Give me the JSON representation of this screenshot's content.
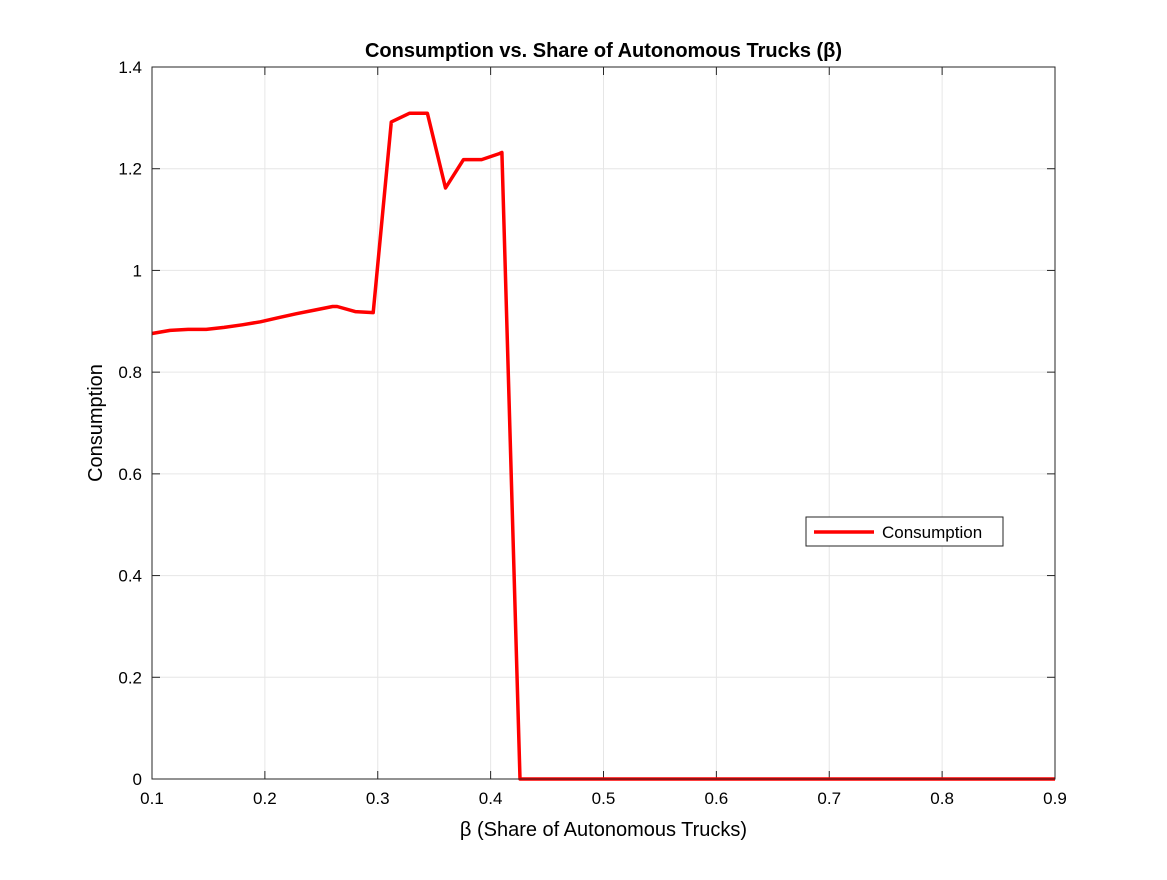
{
  "chart_data": {
    "type": "line",
    "title": "Consumption vs. Share of Autonomous Trucks (β)",
    "xlabel": "β (Share of Autonomous Trucks)",
    "ylabel": "Consumption",
    "xlim": [
      0.1,
      0.9
    ],
    "ylim": [
      0,
      1.4
    ],
    "xticks": [
      0.1,
      0.2,
      0.3,
      0.4,
      0.5,
      0.6,
      0.7,
      0.8,
      0.9
    ],
    "xtick_labels": [
      "0.1",
      "0.2",
      "0.3",
      "0.4",
      "0.5",
      "0.6",
      "0.7",
      "0.8",
      "0.9"
    ],
    "yticks": [
      0,
      0.2,
      0.4,
      0.6,
      0.8,
      1,
      1.2,
      1.4
    ],
    "ytick_labels": [
      "0",
      "0.2",
      "0.4",
      "0.6",
      "0.8",
      "1",
      "1.2",
      "1.4"
    ],
    "grid": true,
    "legend_position": "right",
    "series": [
      {
        "name": "Consumption",
        "color": "#ff0000",
        "x": [
          0.1,
          0.116,
          0.132,
          0.148,
          0.164,
          0.18,
          0.196,
          0.212,
          0.228,
          0.244,
          0.26,
          0.264,
          0.28,
          0.296,
          0.312,
          0.328,
          0.344,
          0.36,
          0.376,
          0.392,
          0.408,
          0.41,
          0.426,
          0.442,
          0.9
        ],
        "y": [
          0.876,
          0.882,
          0.884,
          0.884,
          0.888,
          0.893,
          0.899,
          0.907,
          0.915,
          0.922,
          0.929,
          0.929,
          0.919,
          0.917,
          1.292,
          1.309,
          1.309,
          1.162,
          1.218,
          1.218,
          1.23,
          1.232,
          0.0,
          0.0,
          0.0
        ]
      }
    ]
  }
}
